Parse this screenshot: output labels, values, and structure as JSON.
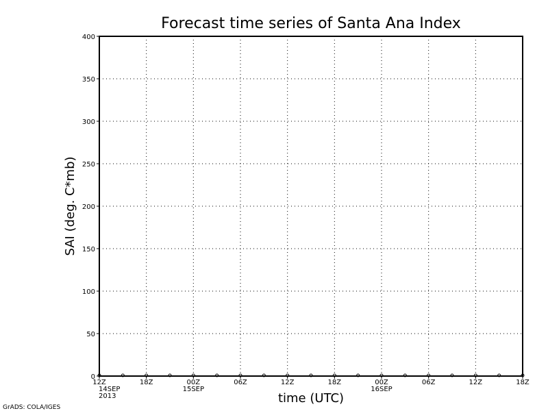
{
  "chart_data": {
    "type": "line",
    "title": "Forecast time series of Santa Ana Index",
    "xlabel": "time (UTC)",
    "ylabel": "SAI (deg. C*mb)",
    "ylim": [
      0,
      400
    ],
    "yticks": [
      "0",
      "50",
      "100",
      "150",
      "200",
      "250",
      "300",
      "350",
      "400"
    ],
    "xticks": [
      {
        "time": "2013-09-14T12:00Z",
        "label": [
          "12Z",
          "14SEP",
          "2013"
        ]
      },
      {
        "time": "2013-09-14T18:00Z",
        "label": [
          "18Z"
        ]
      },
      {
        "time": "2013-09-15T00:00Z",
        "label": [
          "00Z",
          "15SEP"
        ]
      },
      {
        "time": "2013-09-15T06:00Z",
        "label": [
          "06Z"
        ]
      },
      {
        "time": "2013-09-15T12:00Z",
        "label": [
          "12Z"
        ]
      },
      {
        "time": "2013-09-15T18:00Z",
        "label": [
          "18Z"
        ]
      },
      {
        "time": "2013-09-16T00:00Z",
        "label": [
          "00Z",
          "16SEP"
        ]
      },
      {
        "time": "2013-09-16T06:00Z",
        "label": [
          "06Z"
        ]
      },
      {
        "time": "2013-09-16T12:00Z",
        "label": [
          "12Z"
        ]
      },
      {
        "time": "2013-09-16T18:00Z",
        "label": [
          "18Z"
        ]
      }
    ],
    "grid": true,
    "series": [
      {
        "x": [
          "2013-09-14T12:00Z",
          "2013-09-14T15:00Z",
          "2013-09-14T18:00Z",
          "2013-09-14T21:00Z",
          "2013-09-15T00:00Z",
          "2013-09-15T03:00Z",
          "2013-09-15T06:00Z",
          "2013-09-15T09:00Z",
          "2013-09-15T12:00Z",
          "2013-09-15T15:00Z",
          "2013-09-15T18:00Z",
          "2013-09-15T21:00Z",
          "2013-09-16T00:00Z",
          "2013-09-16T03:00Z",
          "2013-09-16T06:00Z",
          "2013-09-16T09:00Z",
          "2013-09-16T12:00Z",
          "2013-09-16T15:00Z",
          "2013-09-16T18:00Z"
        ],
        "values": [
          0,
          0,
          0,
          0,
          0,
          0,
          0,
          0,
          0,
          0,
          0,
          0,
          0,
          0,
          0,
          0,
          0,
          0,
          0
        ],
        "color": "#000000"
      }
    ]
  },
  "footer": "GrADS: COLA/IGES"
}
